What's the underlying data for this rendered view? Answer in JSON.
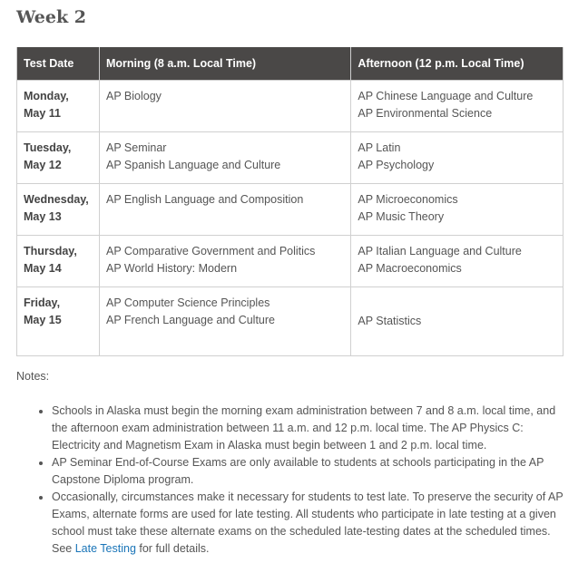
{
  "heading": "Week 2",
  "table": {
    "headers": [
      "Test Date",
      "Morning (8 a.m.  Local Time)",
      "Afternoon (12 p.m. Local Time)"
    ],
    "rows": [
      {
        "day": "Monday,",
        "date": "May 11",
        "morning": [
          "AP Biology"
        ],
        "afternoon": [
          "AP Chinese Language and Culture",
          "AP Environmental Science"
        ]
      },
      {
        "day": "Tuesday,",
        "date": "May 12",
        "morning": [
          "AP Seminar",
          "AP Spanish Language and Culture"
        ],
        "afternoon": [
          "AP Latin",
          "AP Psychology"
        ]
      },
      {
        "day": "Wednesday,",
        "date": "May 13",
        "morning": [
          "AP English Language and Composition"
        ],
        "afternoon": [
          "AP Microeconomics",
          "AP Music Theory"
        ]
      },
      {
        "day": "Thursday,",
        "date": "May 14",
        "morning": [
          "AP Comparative Government and Politics",
          "AP World History: Modern"
        ],
        "afternoon": [
          "AP Italian Language and Culture",
          "AP Macroeconomics"
        ]
      },
      {
        "day": "Friday,",
        "date": "May 15",
        "morning": [
          "AP Computer Science Principles",
          "AP French Language and Culture"
        ],
        "afternoon": [
          "AP Statistics"
        ]
      }
    ]
  },
  "notes": {
    "label": "Notes:",
    "items": [
      "Schools in Alaska must begin the morning exam administration between 7 and 8 a.m. local time, and the afternoon exam administration between 11 a.m. and 12 p.m. local time. The AP Physics C: Electricity and Magnetism Exam in Alaska must begin between 1 and 2 p.m. local time.",
      "AP Seminar End-of-Course Exams are only available to students at schools participating in the AP Capstone Diploma program.",
      {
        "before": "Occasionally, circumstances make it necessary for students to test late. To preserve the security of AP Exams, alternate forms are used for late testing. All students who participate in late testing at a given school must take these alternate exams on the scheduled late-testing dates at the scheduled times. See ",
        "link": "Late Testing",
        "after": " for full details."
      }
    ]
  },
  "colors": {
    "header_bg": "#4a4847",
    "link": "#1a75b8"
  }
}
